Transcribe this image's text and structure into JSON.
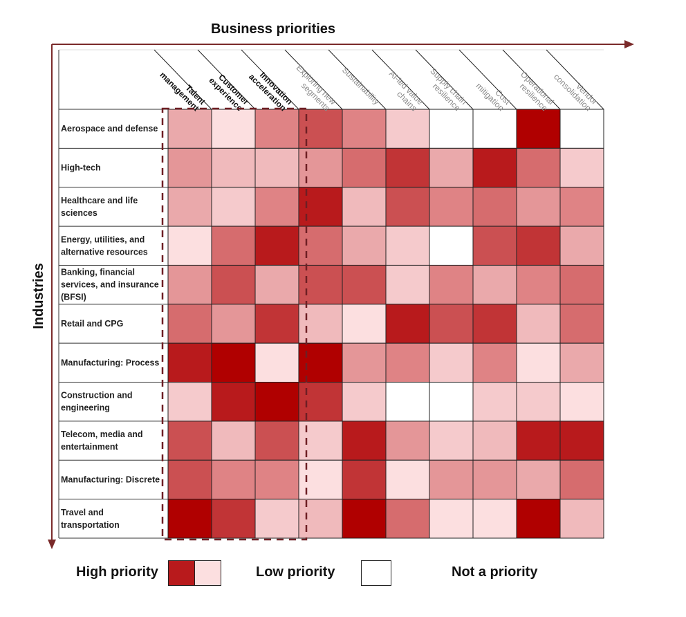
{
  "chart_data": {
    "type": "heatmap",
    "title": "",
    "xlabel": "Business priorities",
    "ylabel": "Industries",
    "columns": [
      {
        "lines": [
          "Talent",
          "management"
        ],
        "highlighted": true
      },
      {
        "lines": [
          "Customer",
          "experience"
        ],
        "highlighted": true
      },
      {
        "lines": [
          "Innovation",
          "acceleration"
        ],
        "highlighted": true
      },
      {
        "lines": [
          "Exploring new",
          "segments"
        ],
        "highlighted": false
      },
      {
        "lines": [
          "Sustainability"
        ],
        "highlighted": false
      },
      {
        "lines": [
          "AI-led value",
          "chains"
        ],
        "highlighted": false
      },
      {
        "lines": [
          "Supply chain",
          "resilience"
        ],
        "highlighted": false
      },
      {
        "lines": [
          "Cost",
          "mitigation"
        ],
        "highlighted": false
      },
      {
        "lines": [
          "Operational",
          "resilience"
        ],
        "highlighted": false
      },
      {
        "lines": [
          "Vendor",
          "consolidation"
        ],
        "highlighted": false
      }
    ],
    "rows": [
      {
        "lines": [
          "Aerospace and defense"
        ],
        "values": [
          4,
          1,
          6,
          8,
          6,
          2,
          0,
          0,
          11,
          0
        ]
      },
      {
        "lines": [
          "High-tech"
        ],
        "values": [
          5,
          3,
          3,
          5,
          7,
          9,
          4,
          10,
          7,
          2
        ]
      },
      {
        "lines": [
          "Healthcare and life",
          "sciences"
        ],
        "values": [
          4,
          2,
          6,
          10,
          3,
          8,
          6,
          7,
          5,
          6
        ]
      },
      {
        "lines": [
          "Energy, utilities, and",
          "alternative resources"
        ],
        "values": [
          1,
          7,
          10,
          7,
          4,
          2,
          0,
          8,
          9,
          4
        ]
      },
      {
        "lines": [
          "Banking, financial",
          "services, and insurance",
          "(BFSI)"
        ],
        "values": [
          5,
          8,
          4,
          8,
          8,
          2,
          6,
          4,
          6,
          7
        ]
      },
      {
        "lines": [
          "Retail and CPG"
        ],
        "values": [
          7,
          5,
          9,
          3,
          1,
          10,
          8,
          9,
          3,
          7
        ]
      },
      {
        "lines": [
          "Manufacturing: Process"
        ],
        "values": [
          10,
          11,
          1,
          11,
          5,
          6,
          2,
          6,
          1,
          4
        ]
      },
      {
        "lines": [
          "Construction and",
          "engineering"
        ],
        "values": [
          2,
          10,
          11,
          9,
          2,
          0,
          0,
          2,
          2,
          1
        ]
      },
      {
        "lines": [
          "Telecom, media and",
          "entertainment"
        ],
        "values": [
          8,
          3,
          8,
          2,
          10,
          5,
          2,
          3,
          10,
          10
        ]
      },
      {
        "lines": [
          "Manufacturing: Discrete"
        ],
        "values": [
          8,
          6,
          6,
          1,
          9,
          1,
          5,
          5,
          4,
          7
        ]
      },
      {
        "lines": [
          "Travel and",
          "transportation"
        ],
        "values": [
          11,
          9,
          2,
          3,
          11,
          7,
          1,
          1,
          11,
          3
        ]
      }
    ],
    "scale": {
      "min": 0,
      "max": 11,
      "note_zero": "Not a priority"
    },
    "palette": [
      "#ffffff",
      "#fcdfe0",
      "#f5cacc",
      "#f0babc",
      "#eaa9ab",
      "#e49698",
      "#df8385",
      "#d66c6e",
      "#cb5052",
      "#c13436",
      "#b81a1c",
      "#b00000"
    ],
    "legend": {
      "high": "High priority",
      "low": "Low priority",
      "none": "Not a priority",
      "high_color": "#b81a1c",
      "low_color": "#fcdfe0"
    },
    "axis_color": "#7a2a2a",
    "highlight_color": "#6e1f24"
  }
}
